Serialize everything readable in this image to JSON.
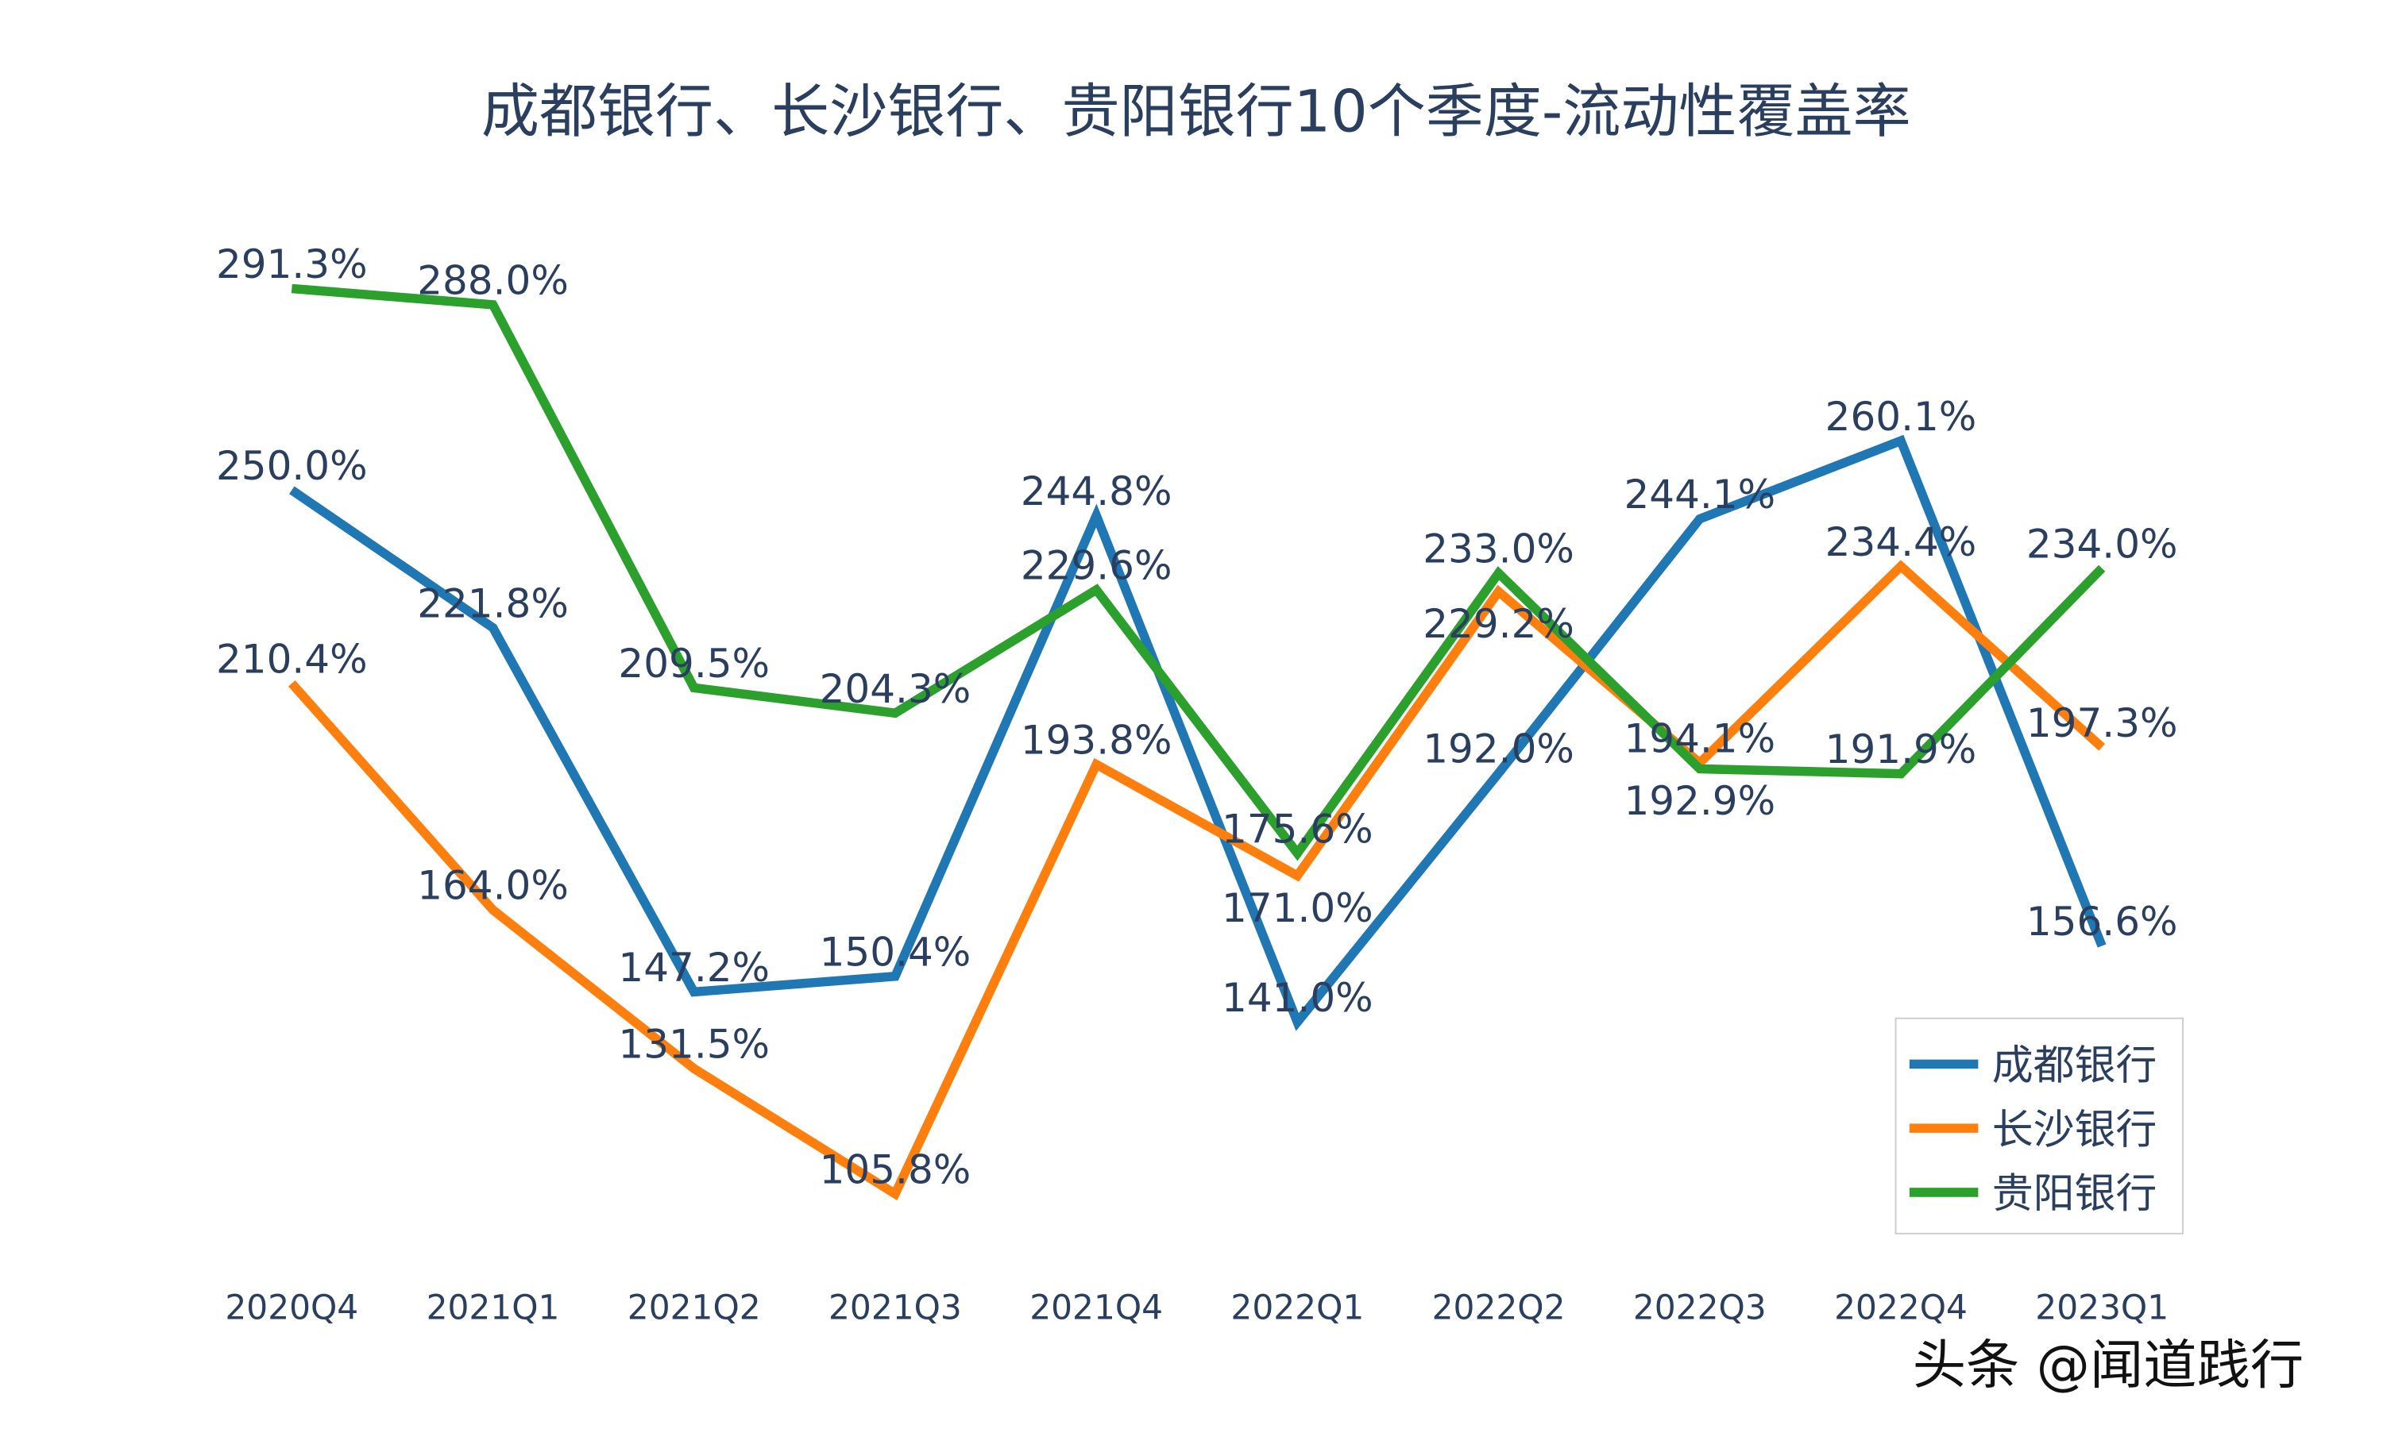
{
  "chart_data": {
    "type": "line",
    "title": "成都银行、长沙银行、贵阳银行10个季度-流动性覆盖率",
    "xlabel": "",
    "ylabel": "",
    "categories": [
      "2020Q4",
      "2021Q1",
      "2021Q2",
      "2021Q3",
      "2021Q4",
      "2022Q1",
      "2022Q2",
      "2022Q3",
      "2022Q4",
      "2023Q1"
    ],
    "series": [
      {
        "name": "成都银行",
        "color": "#1f77b4",
        "values": [
          250.0,
          221.8,
          147.2,
          150.4,
          244.8,
          141.0,
          192.0,
          244.1,
          260.1,
          156.6
        ]
      },
      {
        "name": "长沙银行",
        "color": "#ff7f0e",
        "values": [
          210.4,
          164.0,
          131.5,
          105.8,
          193.8,
          171.0,
          229.2,
          194.1,
          234.4,
          197.3
        ]
      },
      {
        "name": "贵阳银行",
        "color": "#2ca02c",
        "values": [
          291.3,
          288.0,
          209.5,
          204.3,
          229.6,
          175.6,
          233.0,
          192.9,
          191.9,
          234.0
        ]
      }
    ],
    "value_suffix": "%",
    "grid": false,
    "y_axis_visible": false,
    "legend_placement": "bottom-right"
  },
  "watermark": "头条 @闻道践行"
}
